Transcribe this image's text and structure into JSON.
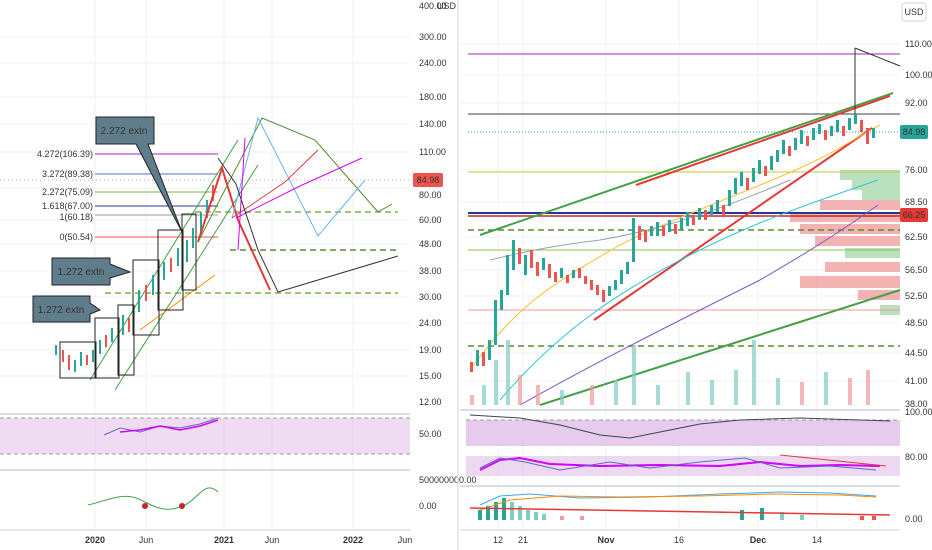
{
  "left_panel": {
    "currency_label": "USD",
    "y_axis_labels": [
      "400.00",
      "300.00",
      "240.00",
      "180.00",
      "140.00",
      "110.00",
      "80.00",
      "60.00",
      "48.00",
      "38.00",
      "30.00",
      "24.00",
      "19.00",
      "15.00",
      "12.00"
    ],
    "price_tag": "84.98",
    "fib_labels": [
      "4.272(106.39)",
      "3.272(89.38)",
      "2.272(75.09)",
      "1.618(67.00)",
      "1(60.18)",
      "0(50.54)"
    ],
    "callouts": [
      "2.272 extn",
      "1.272 extn",
      "1.272 extn"
    ],
    "rsi_axis_labels": [
      "50.00"
    ],
    "macd_axis_labels": [
      "500000000.00",
      "0.00"
    ],
    "x_axis_labels": [
      "2020",
      "Jun",
      "2021",
      "Jun",
      "2022",
      "Jun"
    ]
  },
  "right_panel": {
    "currency_label": "USD",
    "y_axis_labels": [
      "110.00",
      "100.00",
      "92.00",
      "76.00",
      "68.50",
      "62.50",
      "56.50",
      "52.50",
      "48.50",
      "44.50",
      "41.00",
      "38.00"
    ],
    "price_tag": "84.98",
    "level_tag": "66.25",
    "rsi_axis_labels": [
      "100.00",
      "80.00"
    ],
    "macd_axis_labels": [
      "0.00"
    ],
    "x_axis_labels": [
      "12",
      "21",
      "Nov",
      "16",
      "Dec",
      "14"
    ]
  },
  "colors": {
    "up": "#26a69a",
    "down": "#ef5350",
    "rsi_band": "#e1bee7",
    "rsi_line": "#d500f9",
    "fib_purple": "#9c27b0",
    "trend_green": "#4caf50",
    "trend_red": "#e53935"
  }
}
